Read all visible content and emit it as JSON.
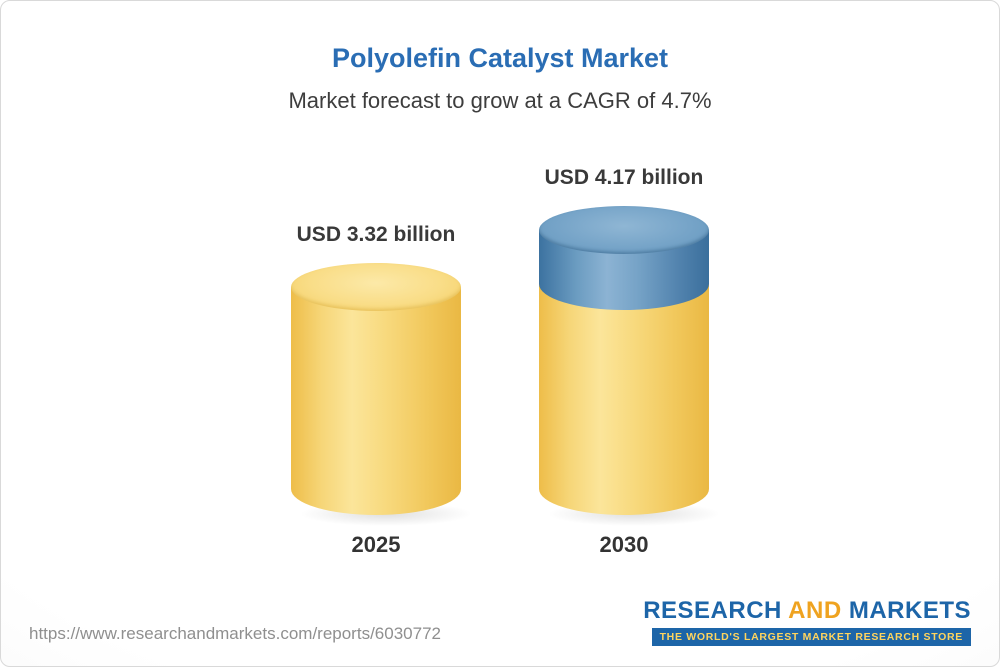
{
  "chart_data": {
    "type": "bar",
    "title": "Polyolefin Catalyst Market",
    "subtitle": "Market forecast to grow at a CAGR of 4.7%",
    "cagr_pct": 4.7,
    "unit": "USD billion",
    "categories": [
      "2025",
      "2030"
    ],
    "values": [
      3.32,
      4.17
    ],
    "value_labels": [
      "USD 3.32 billion",
      "USD 4.17 billion"
    ],
    "colors": {
      "title_blue": "#2a6db4",
      "bar_base_yellow": "#f3cb5b",
      "bar_growth_blue": "#5d8fb8"
    },
    "notes": "3D cylinder bars; 2030 bar shows growth segment as blue cap stacked on yellow base"
  },
  "footer": {
    "url": "https://www.researchandmarkets.com/reports/6030772",
    "logo": {
      "research": "RESEARCH",
      "and": "AND",
      "markets": "MARKETS",
      "tagline": "THE WORLD'S LARGEST MARKET RESEARCH STORE"
    }
  }
}
